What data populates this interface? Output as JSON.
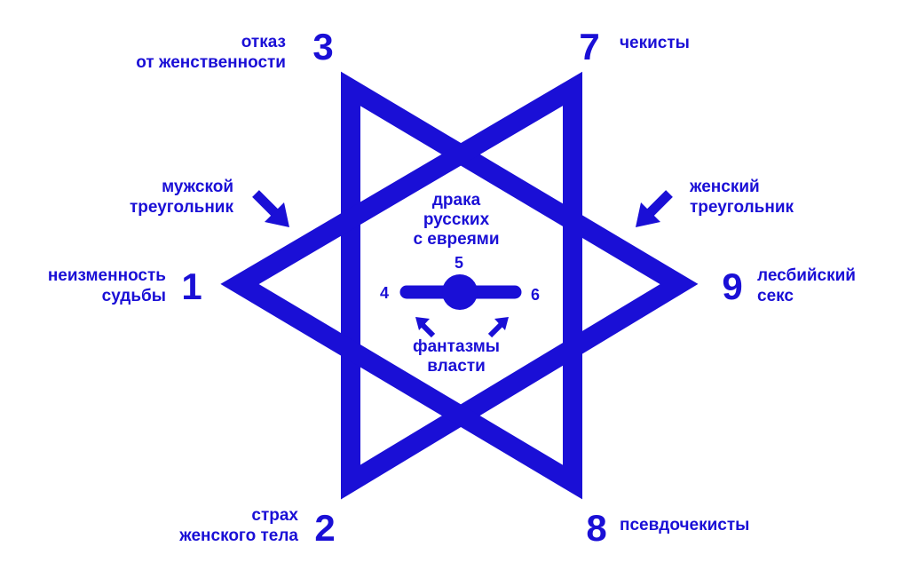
{
  "color": "#1a0fd6",
  "center": {
    "label_lines": [
      "драка",
      "русских",
      "с евреями"
    ],
    "bottom_lines": [
      "фантазмы",
      "власти"
    ],
    "num_top": "5",
    "num_left": "4",
    "num_right": "6"
  },
  "nodes": {
    "n1": {
      "number": "1",
      "lines": [
        "неизменность",
        "судьбы"
      ]
    },
    "n2": {
      "number": "2",
      "lines": [
        "страх",
        "женского тела"
      ]
    },
    "n3": {
      "number": "3",
      "lines": [
        "отказ",
        "от женственности"
      ]
    },
    "n7": {
      "number": "7",
      "lines": [
        "чекисты"
      ]
    },
    "n8": {
      "number": "8",
      "lines": [
        "псевдочекисты"
      ]
    },
    "n9": {
      "number": "9",
      "lines": [
        "лесбийский",
        "секс"
      ]
    }
  },
  "triangles": {
    "male": [
      "мужской",
      "треугольник"
    ],
    "female": [
      "женский",
      "треугольник"
    ]
  }
}
